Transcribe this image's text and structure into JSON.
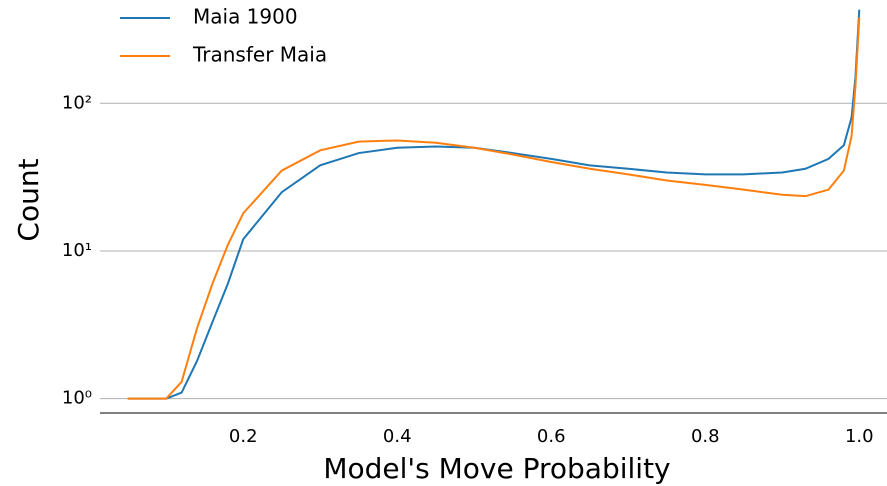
{
  "chart_data": {
    "type": "line",
    "xlabel": "Model's Move Probability",
    "ylabel": "Count",
    "x": [
      0.05,
      0.1,
      0.12,
      0.14,
      0.16,
      0.18,
      0.2,
      0.25,
      0.3,
      0.35,
      0.4,
      0.45,
      0.5,
      0.55,
      0.6,
      0.65,
      0.7,
      0.75,
      0.8,
      0.85,
      0.9,
      0.93,
      0.96,
      0.98,
      0.99,
      0.995,
      1.0
    ],
    "series": [
      {
        "name": "Maia 1900",
        "color": "#1f77b4",
        "values": [
          1,
          1,
          1.1,
          1.8,
          3.3,
          6,
          12,
          25,
          38,
          46,
          50,
          51,
          50,
          46,
          42,
          38,
          36,
          34,
          33,
          33,
          34,
          36,
          42,
          52,
          80,
          150,
          430
        ]
      },
      {
        "name": "Transfer Maia",
        "color": "#ff7f0e",
        "values": [
          1,
          1,
          1.3,
          3,
          6,
          11,
          18,
          35,
          48,
          55,
          56,
          54,
          50,
          45,
          40,
          36,
          33,
          30,
          28,
          26,
          24,
          23.5,
          26,
          35,
          60,
          130,
          380
        ]
      }
    ],
    "xlim": [
      0.014,
      1.036
    ],
    "xticks": [
      0.2,
      0.4,
      0.6,
      0.8,
      {
        "value": 1.0,
        "label": "1.0"
      }
    ],
    "ylim": [
      0.8,
      500
    ],
    "ylog": true,
    "yticks": [
      {
        "value": 1,
        "label": "10⁰"
      },
      {
        "value": 10,
        "label": "10¹"
      },
      {
        "value": 100,
        "label": "10²"
      }
    ],
    "grid": true,
    "legend": "upper left"
  }
}
